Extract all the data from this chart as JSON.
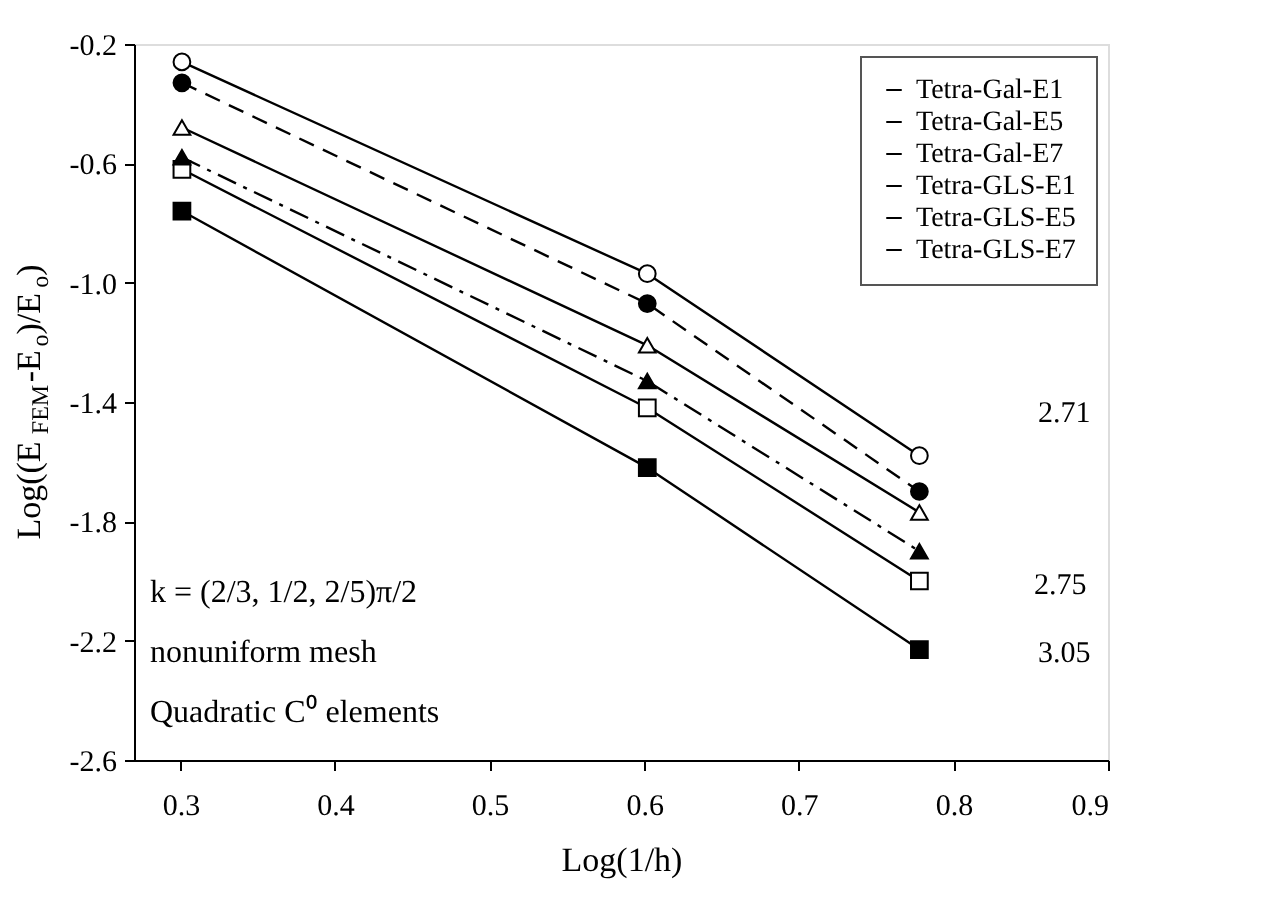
{
  "chart_data": {
    "type": "line",
    "xlabel": "Log(1/h)",
    "ylabel": "Log((E$_{FEM}$-E$_{o}$)/E$_{o}$)",
    "x": [
      0.301,
      0.602,
      0.778
    ],
    "series": [
      {
        "name": "Tetra-Gal-E1",
        "color": "#000000",
        "marker": "square-open",
        "line_style": "solid",
        "values": [
          -0.62,
          -1.42,
          -2.0
        ]
      },
      {
        "name": "Tetra-Gal-E5",
        "color": "#000000",
        "marker": "triangle-open",
        "line_style": "solid",
        "values": [
          -0.48,
          -1.21,
          -1.77
        ]
      },
      {
        "name": "Tetra-Gal-E7",
        "color": "#000000",
        "marker": "circle-open",
        "line_style": "solid",
        "values": [
          -0.26,
          -0.97,
          -1.58
        ]
      },
      {
        "name": "Tetra-GLS-E1",
        "color": "#000000",
        "marker": "square",
        "line_style": "solid",
        "values": [
          -0.76,
          -1.62,
          -2.23
        ]
      },
      {
        "name": "Tetra-GLS-E5",
        "color": "#000000",
        "marker": "triangle",
        "line_style": "dashdot",
        "values": [
          -0.58,
          -1.33,
          -1.9
        ]
      },
      {
        "name": "Tetra-GLS-E7",
        "color": "#000000",
        "marker": "circle",
        "line_style": "dashed",
        "values": [
          -0.33,
          -1.07,
          -1.7
        ]
      }
    ],
    "xlim": [
      0.27,
      0.9
    ],
    "xticks": [
      0.3,
      0.4,
      0.5,
      0.6,
      0.7,
      0.8,
      0.9
    ],
    "ylim": [
      -2.6,
      -0.2
    ],
    "yticks": [
      -2.6,
      -2.2,
      -1.8,
      -1.4,
      {
        "value": -1.0,
        "label": "-1.0"
      },
      -0.6,
      -0.2
    ],
    "grid": false,
    "legend": "top right",
    "annotations": [
      "2.71",
      "2.75",
      "3.05",
      "k = (2/3, 1/2, 2/5)π/2",
      "nonuniform mesh",
      "Quadratic C⁰ elements"
    ]
  }
}
